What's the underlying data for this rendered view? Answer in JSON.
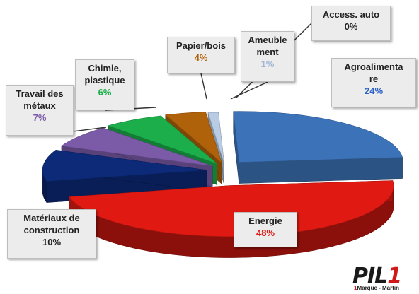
{
  "chart_data": {
    "type": "pie",
    "title": "",
    "style": "3d-exploded",
    "slices": [
      {
        "label": "Agroalimentaire",
        "label_lines": [
          "Agroalimenta",
          "re"
        ],
        "value": 24,
        "pct_text": "24%",
        "color": "#3c73b8",
        "pct_color": "#2a61c7"
      },
      {
        "label": "Energie",
        "label_lines": [
          "Energie"
        ],
        "value": 48,
        "pct_text": "48%",
        "color": "#e01a12",
        "pct_color": "#e01a12"
      },
      {
        "label": "Matériaux de construction",
        "label_lines": [
          "Matériaux de",
          "construction"
        ],
        "value": 10,
        "pct_text": "10%",
        "color": "#0c2a78",
        "pct_color": "#222222"
      },
      {
        "label": "Travail des métaux",
        "label_lines": [
          "Travail des",
          "métaux"
        ],
        "value": 7,
        "pct_text": "7%",
        "color": "#7b5aa8",
        "pct_color": "#7b5aa8"
      },
      {
        "label": "Chimie, plastique",
        "label_lines": [
          "Chimie,",
          "plastique"
        ],
        "value": 6,
        "pct_text": "6%",
        "color": "#1cae4a",
        "pct_color": "#1cae4a"
      },
      {
        "label": "Papier/bois",
        "label_lines": [
          "Papier/bois"
        ],
        "value": 4,
        "pct_text": "4%",
        "color": "#b0620a",
        "pct_color": "#b0620a"
      },
      {
        "label": "Ameublement",
        "label_lines": [
          "Ameuble",
          "ment"
        ],
        "value": 1,
        "pct_text": "1%",
        "color": "#b8cce4",
        "pct_color": "#9fb6d6"
      },
      {
        "label": "Access. auto",
        "label_lines": [
          "Access. auto"
        ],
        "value": 0,
        "pct_text": "0%",
        "color": "#dddddd",
        "pct_color": "#222222"
      }
    ]
  },
  "logo": {
    "mark_black": "PIL",
    "mark_red": "1",
    "sub_red": "1",
    "sub_text": "Marque - Martin"
  }
}
